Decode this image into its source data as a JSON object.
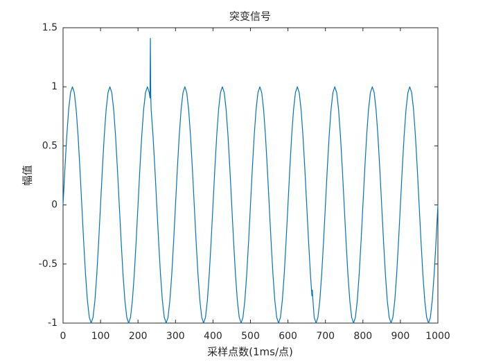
{
  "chart_data": {
    "type": "line",
    "title": "突变信号",
    "x_label": "采样点数(1ms/点)",
    "y_label": "幅值",
    "color": "#0072BD",
    "xlim": [
      0,
      1000
    ],
    "xticks": [
      0,
      100,
      200,
      300,
      400,
      500,
      600,
      700,
      800,
      900,
      1000
    ],
    "ylim": [
      -1,
      1.5
    ],
    "yticks": [
      -1,
      -0.5,
      0,
      0.5,
      1,
      1.5
    ],
    "x": [
      0,
      5,
      10,
      15,
      20,
      25,
      30,
      35,
      40,
      45,
      50,
      55,
      60,
      65,
      70,
      75,
      80,
      85,
      90,
      95,
      100,
      105,
      110,
      115,
      120,
      125,
      130,
      135,
      140,
      145,
      150,
      155,
      160,
      165,
      170,
      175,
      180,
      185,
      190,
      195,
      200,
      205,
      210,
      215,
      220,
      225,
      230,
      232,
      233,
      234,
      235,
      240,
      245,
      250,
      255,
      260,
      265,
      270,
      275,
      280,
      285,
      290,
      295,
      300,
      305,
      310,
      315,
      320,
      325,
      330,
      335,
      340,
      345,
      350,
      355,
      360,
      365,
      370,
      375,
      380,
      385,
      390,
      395,
      400,
      405,
      410,
      415,
      420,
      425,
      430,
      435,
      440,
      445,
      450,
      455,
      460,
      465,
      470,
      475,
      480,
      485,
      490,
      495,
      500,
      505,
      510,
      515,
      520,
      525,
      530,
      535,
      540,
      545,
      550,
      555,
      560,
      565,
      570,
      575,
      580,
      585,
      590,
      595,
      600,
      605,
      610,
      615,
      620,
      625,
      630,
      635,
      640,
      645,
      650,
      655,
      660,
      664,
      665,
      666,
      670,
      675,
      680,
      685,
      690,
      695,
      700,
      705,
      710,
      715,
      720,
      725,
      730,
      735,
      740,
      745,
      750,
      755,
      760,
      765,
      770,
      775,
      780,
      785,
      790,
      795,
      800,
      805,
      810,
      815,
      820,
      825,
      830,
      835,
      840,
      845,
      850,
      855,
      860,
      865,
      870,
      875,
      880,
      885,
      890,
      895,
      900,
      905,
      910,
      915,
      920,
      925,
      930,
      935,
      940,
      945,
      950,
      955,
      960,
      965,
      970,
      975,
      980,
      985,
      990,
      995,
      1000
    ],
    "values": [
      0,
      0.309,
      0.588,
      0.809,
      0.951,
      1,
      0.951,
      0.809,
      0.588,
      0.309,
      0,
      -0.309,
      -0.588,
      -0.809,
      -0.951,
      -1,
      -0.951,
      -0.809,
      -0.588,
      -0.309,
      0,
      0.309,
      0.588,
      0.809,
      0.951,
      1,
      0.951,
      0.809,
      0.588,
      0.309,
      0,
      -0.309,
      -0.588,
      -0.809,
      -0.951,
      -1,
      -0.951,
      -0.809,
      -0.588,
      -0.309,
      0,
      0.309,
      0.588,
      0.809,
      0.951,
      1,
      0.951,
      0.905,
      1.41,
      0.93,
      0.809,
      0.588,
      0.309,
      0,
      -0.309,
      -0.588,
      -0.809,
      -0.951,
      -1,
      -0.951,
      -0.809,
      -0.588,
      -0.309,
      0,
      0.309,
      0.588,
      0.809,
      0.951,
      1,
      0.951,
      0.809,
      0.588,
      0.309,
      0,
      -0.309,
      -0.588,
      -0.809,
      -0.951,
      -1,
      -0.951,
      -0.809,
      -0.588,
      -0.309,
      0,
      0.309,
      0.588,
      0.809,
      0.951,
      1,
      0.951,
      0.809,
      0.588,
      0.309,
      0,
      -0.309,
      -0.588,
      -0.809,
      -0.951,
      -1,
      -0.951,
      -0.809,
      -0.588,
      -0.309,
      0,
      0.309,
      0.588,
      0.809,
      0.951,
      1,
      0.951,
      0.809,
      0.588,
      0.309,
      0,
      -0.309,
      -0.588,
      -0.809,
      -0.951,
      -1,
      -0.951,
      -0.809,
      -0.588,
      -0.309,
      0,
      0.309,
      0.588,
      0.809,
      0.951,
      1,
      0.951,
      0.809,
      0.588,
      0.309,
      0,
      -0.309,
      -0.588,
      -0.77,
      -0.72,
      -0.78,
      -0.951,
      -1,
      -0.951,
      -0.809,
      -0.588,
      -0.309,
      0,
      0.309,
      0.588,
      0.809,
      0.951,
      1,
      0.951,
      0.809,
      0.588,
      0.309,
      0,
      -0.309,
      -0.588,
      -0.809,
      -0.951,
      -1,
      -0.951,
      -0.809,
      -0.588,
      -0.309,
      0,
      0.309,
      0.588,
      0.809,
      0.951,
      1,
      0.951,
      0.809,
      0.588,
      0.309,
      0,
      -0.309,
      -0.588,
      -0.809,
      -0.951,
      -1,
      -0.951,
      -0.809,
      -0.588,
      -0.309,
      0,
      0.309,
      0.588,
      0.809,
      0.951,
      1,
      0.951,
      0.809,
      0.588,
      0.309,
      0,
      -0.309,
      -0.588,
      -0.809,
      -0.951,
      -1,
      -0.951,
      -0.809,
      -0.588,
      -0.309,
      0
    ]
  }
}
